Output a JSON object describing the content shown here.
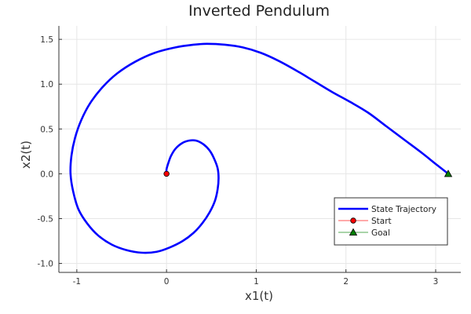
{
  "chart_data": {
    "type": "line",
    "title": "Inverted Pendulum",
    "xlabel": "x1(t)",
    "ylabel": "x2(t)",
    "xlim": [
      -1.2,
      3.28
    ],
    "ylim": [
      -1.1,
      1.65
    ],
    "grid": true,
    "legend_position": "bottom-right",
    "x_ticks": [
      -1,
      0,
      1,
      2,
      3
    ],
    "x_tick_labels": [
      "-1",
      "0",
      "1",
      "2",
      "3"
    ],
    "y_ticks": [
      -1.0,
      -0.5,
      0.0,
      0.5,
      1.0,
      1.5
    ],
    "y_tick_labels": [
      "-1.0",
      "-0.5",
      "0.0",
      "0.5",
      "1.0",
      "1.5"
    ],
    "series": [
      {
        "name": "State Trajectory",
        "kind": "line",
        "color": "#0000ff",
        "points": [
          [
            0.0,
            0.0
          ],
          [
            0.0,
            0.05
          ],
          [
            0.02,
            0.12
          ],
          [
            0.05,
            0.2
          ],
          [
            0.1,
            0.28
          ],
          [
            0.17,
            0.34
          ],
          [
            0.25,
            0.37
          ],
          [
            0.33,
            0.37
          ],
          [
            0.41,
            0.33
          ],
          [
            0.48,
            0.26
          ],
          [
            0.53,
            0.17
          ],
          [
            0.57,
            0.06
          ],
          [
            0.58,
            -0.05
          ],
          [
            0.57,
            -0.17
          ],
          [
            0.54,
            -0.3
          ],
          [
            0.48,
            -0.43
          ],
          [
            0.4,
            -0.55
          ],
          [
            0.3,
            -0.66
          ],
          [
            0.18,
            -0.75
          ],
          [
            0.04,
            -0.82
          ],
          [
            -0.11,
            -0.87
          ],
          [
            -0.28,
            -0.88
          ],
          [
            -0.45,
            -0.85
          ],
          [
            -0.61,
            -0.79
          ],
          [
            -0.76,
            -0.69
          ],
          [
            -0.88,
            -0.56
          ],
          [
            -0.98,
            -0.4
          ],
          [
            -1.04,
            -0.2
          ],
          [
            -1.07,
            0.0
          ],
          [
            -1.06,
            0.2
          ],
          [
            -1.02,
            0.4
          ],
          [
            -0.95,
            0.6
          ],
          [
            -0.85,
            0.79
          ],
          [
            -0.71,
            0.97
          ],
          [
            -0.55,
            1.12
          ],
          [
            -0.35,
            1.25
          ],
          [
            -0.13,
            1.35
          ],
          [
            0.1,
            1.41
          ],
          [
            0.3,
            1.44
          ],
          [
            0.45,
            1.45
          ],
          [
            0.65,
            1.44
          ],
          [
            0.85,
            1.41
          ],
          [
            1.05,
            1.35
          ],
          [
            1.25,
            1.26
          ],
          [
            1.45,
            1.15
          ],
          [
            1.65,
            1.03
          ],
          [
            1.85,
            0.91
          ],
          [
            2.05,
            0.8
          ],
          [
            2.25,
            0.68
          ],
          [
            2.45,
            0.53
          ],
          [
            2.65,
            0.38
          ],
          [
            2.85,
            0.23
          ],
          [
            3.0,
            0.11
          ],
          [
            3.14,
            0.0
          ]
        ]
      },
      {
        "name": "Start",
        "kind": "marker",
        "marker": "circle",
        "color": "#ff0000",
        "points": [
          [
            0.0,
            0.0
          ]
        ]
      },
      {
        "name": "Goal",
        "kind": "marker",
        "marker": "triangle",
        "color": "#008000",
        "points": [
          [
            3.14,
            0.0
          ]
        ]
      }
    ]
  }
}
